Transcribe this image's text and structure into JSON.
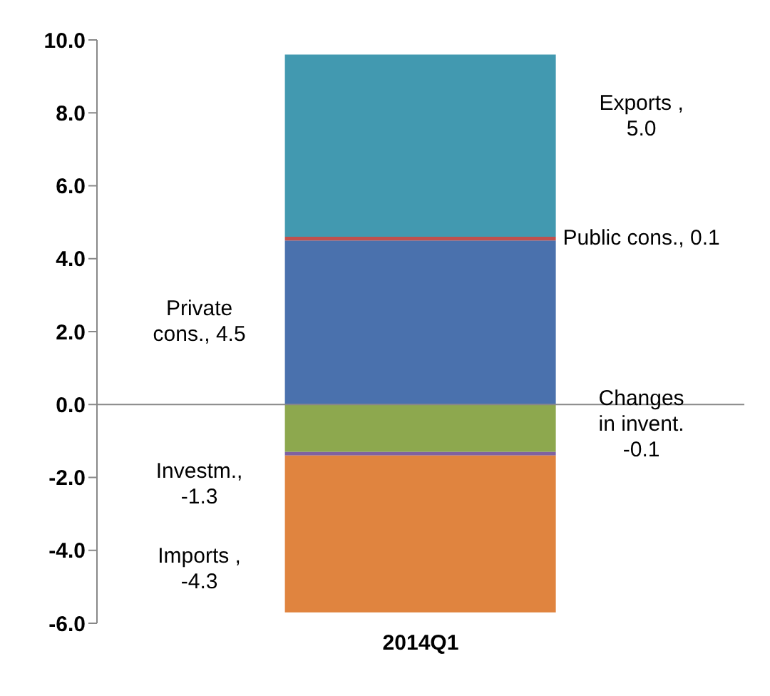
{
  "chart_data": {
    "type": "bar",
    "stacked": true,
    "categories": [
      "2014Q1"
    ],
    "series": [
      {
        "color": "#4a71ad",
        "values": [
          4.5
        ]
      },
      {
        "color": "#c0504d",
        "values": [
          0.1
        ]
      },
      {
        "color": "#4299b0",
        "values": [
          5.0
        ]
      },
      {
        "color": "#8da84e",
        "values": [
          -1.3
        ]
      },
      {
        "color": "#7f62a0",
        "values": [
          -0.1
        ]
      },
      {
        "color": "#e0843f",
        "values": [
          -4.3
        ]
      }
    ],
    "annotations": [
      "Private cons., 4.5",
      "Public cons., 0.1",
      "Exports , 5.0",
      "Investm., -1.3",
      "Changes in invent. -0.1",
      "Imports , -4.3"
    ],
    "ylim": [
      -6,
      10
    ],
    "yticks": [
      {
        "value": -6,
        "label": "-6.0"
      },
      {
        "value": -4,
        "label": "-4.0"
      },
      {
        "value": -2,
        "label": "-2.0"
      },
      {
        "value": 0,
        "label": "0.0"
      },
      {
        "value": 2,
        "label": "2.0"
      },
      {
        "value": 4,
        "label": "4.0"
      },
      {
        "value": 6,
        "label": "6.0"
      },
      {
        "value": 8,
        "label": "8.0"
      },
      {
        "value": 10,
        "label": "10.0"
      }
    ]
  }
}
